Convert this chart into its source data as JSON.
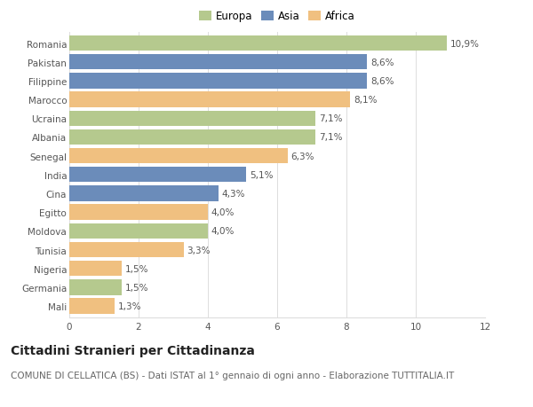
{
  "categories": [
    "Romania",
    "Pakistan",
    "Filippine",
    "Marocco",
    "Ucraina",
    "Albania",
    "Senegal",
    "India",
    "Cina",
    "Egitto",
    "Moldova",
    "Tunisia",
    "Nigeria",
    "Germania",
    "Mali"
  ],
  "values": [
    10.9,
    8.6,
    8.6,
    8.1,
    7.1,
    7.1,
    6.3,
    5.1,
    4.3,
    4.0,
    4.0,
    3.3,
    1.5,
    1.5,
    1.3
  ],
  "labels": [
    "10,9%",
    "8,6%",
    "8,6%",
    "8,1%",
    "7,1%",
    "7,1%",
    "6,3%",
    "5,1%",
    "4,3%",
    "4,0%",
    "4,0%",
    "3,3%",
    "1,5%",
    "1,5%",
    "1,3%"
  ],
  "colors": [
    "#b5c98e",
    "#6b8cba",
    "#6b8cba",
    "#f0c080",
    "#b5c98e",
    "#b5c98e",
    "#f0c080",
    "#6b8cba",
    "#6b8cba",
    "#f0c080",
    "#b5c98e",
    "#f0c080",
    "#f0c080",
    "#b5c98e",
    "#f0c080"
  ],
  "legend_labels": [
    "Europa",
    "Asia",
    "Africa"
  ],
  "legend_colors": [
    "#b5c98e",
    "#6b8cba",
    "#f0c080"
  ],
  "title": "Cittadini Stranieri per Cittadinanza",
  "subtitle": "COMUNE DI CELLATICA (BS) - Dati ISTAT al 1° gennaio di ogni anno - Elaborazione TUTTITALIA.IT",
  "xlim": [
    0,
    12
  ],
  "xticks": [
    0,
    2,
    4,
    6,
    8,
    10,
    12
  ],
  "background_color": "#ffffff",
  "grid_color": "#dddddd",
  "bar_height": 0.82,
  "title_fontsize": 10,
  "subtitle_fontsize": 7.5,
  "label_fontsize": 7.5,
  "tick_fontsize": 7.5,
  "legend_fontsize": 8.5
}
